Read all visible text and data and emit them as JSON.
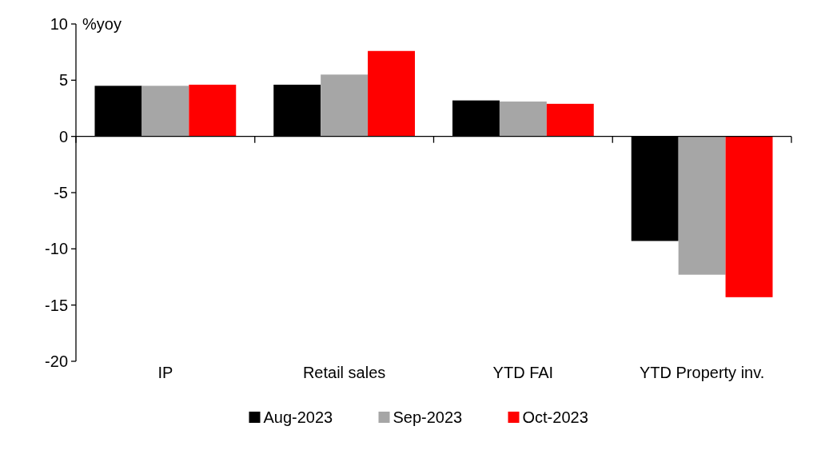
{
  "chart_data": {
    "type": "bar",
    "ylabel": "%yoy",
    "categories": [
      "IP",
      "Retail sales",
      "YTD FAI",
      "YTD Property inv."
    ],
    "series": [
      {
        "name": "Aug-2023",
        "color": "#000000",
        "values": [
          4.5,
          4.6,
          3.2,
          -9.3
        ]
      },
      {
        "name": "Sep-2023",
        "color": "#a6a6a6",
        "values": [
          4.5,
          5.5,
          3.1,
          -12.3
        ]
      },
      {
        "name": "Oct-2023",
        "color": "#ff0000",
        "values": [
          4.6,
          7.6,
          2.9,
          -14.3
        ]
      }
    ],
    "ylim": [
      -20,
      10
    ],
    "yticks": [
      -20,
      -15,
      -10,
      -5,
      0,
      5,
      10
    ],
    "legend": "bottom"
  }
}
